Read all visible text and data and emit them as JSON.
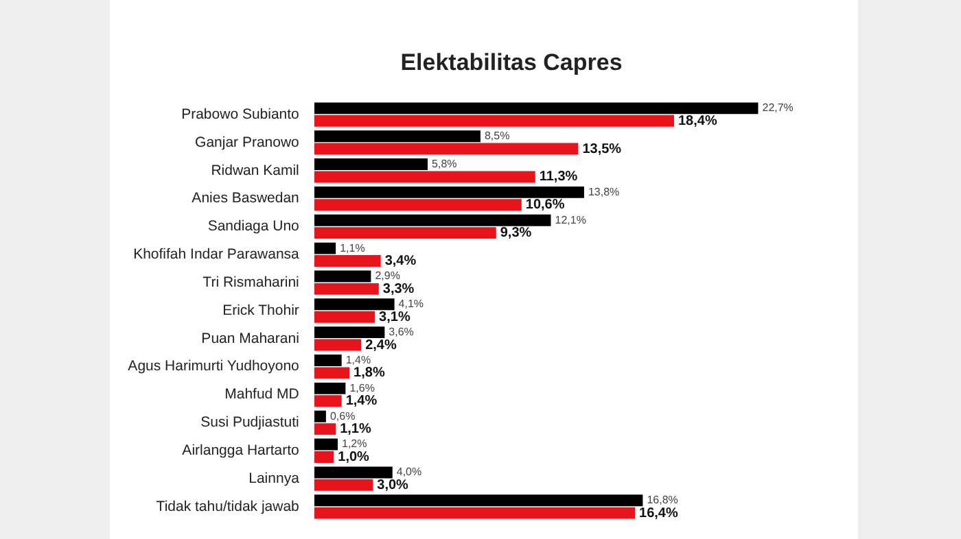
{
  "chart_data": {
    "type": "bar",
    "orientation": "horizontal",
    "title": "Elektabilitas Capres",
    "tick_labels": "y",
    "categories": [
      "Prabowo Subianto",
      "Ganjar Pranowo",
      "Ridwan Kamil",
      "Anies Baswedan",
      "Sandiaga Uno",
      "Khofifah Indar Parawansa",
      "Tri Rismaharini",
      "Erick Thohir",
      "Puan Maharani",
      "Agus Harimurti Yudhoyono",
      "Mahfud MD",
      "Susi Pudjiastuti",
      "Airlangga Hartarto",
      "Lainnya",
      "Tidak tahu/tidak jawab"
    ],
    "series": [
      {
        "color": "#000000",
        "values": [
          22.7,
          8.5,
          5.8,
          13.8,
          12.1,
          1.1,
          2.9,
          4.1,
          3.6,
          1.4,
          1.6,
          0.6,
          1.2,
          4.0,
          16.8
        ],
        "value_labels": [
          "22,7%",
          "8,5%",
          "5,8%",
          "13,8%",
          "12,1%",
          "1,1%",
          "2,9%",
          "4,1%",
          "3,6%",
          "1,4%",
          "1,6%",
          "0,6%",
          "1,2%",
          "4,0%",
          "16,8%"
        ]
      },
      {
        "color": "#e8141b",
        "values": [
          18.4,
          13.5,
          11.3,
          10.6,
          9.3,
          3.4,
          3.3,
          3.1,
          2.4,
          1.8,
          1.4,
          1.1,
          1.0,
          3.0,
          16.4
        ],
        "value_labels": [
          "18,4%",
          "13,5%",
          "11,3%",
          "10,6%",
          "9,3%",
          "3,4%",
          "3,3%",
          "3,1%",
          "2,4%",
          "1,8%",
          "1,4%",
          "1,1%",
          "1,0%",
          "3,0%",
          "16,4%"
        ]
      }
    ]
  }
}
